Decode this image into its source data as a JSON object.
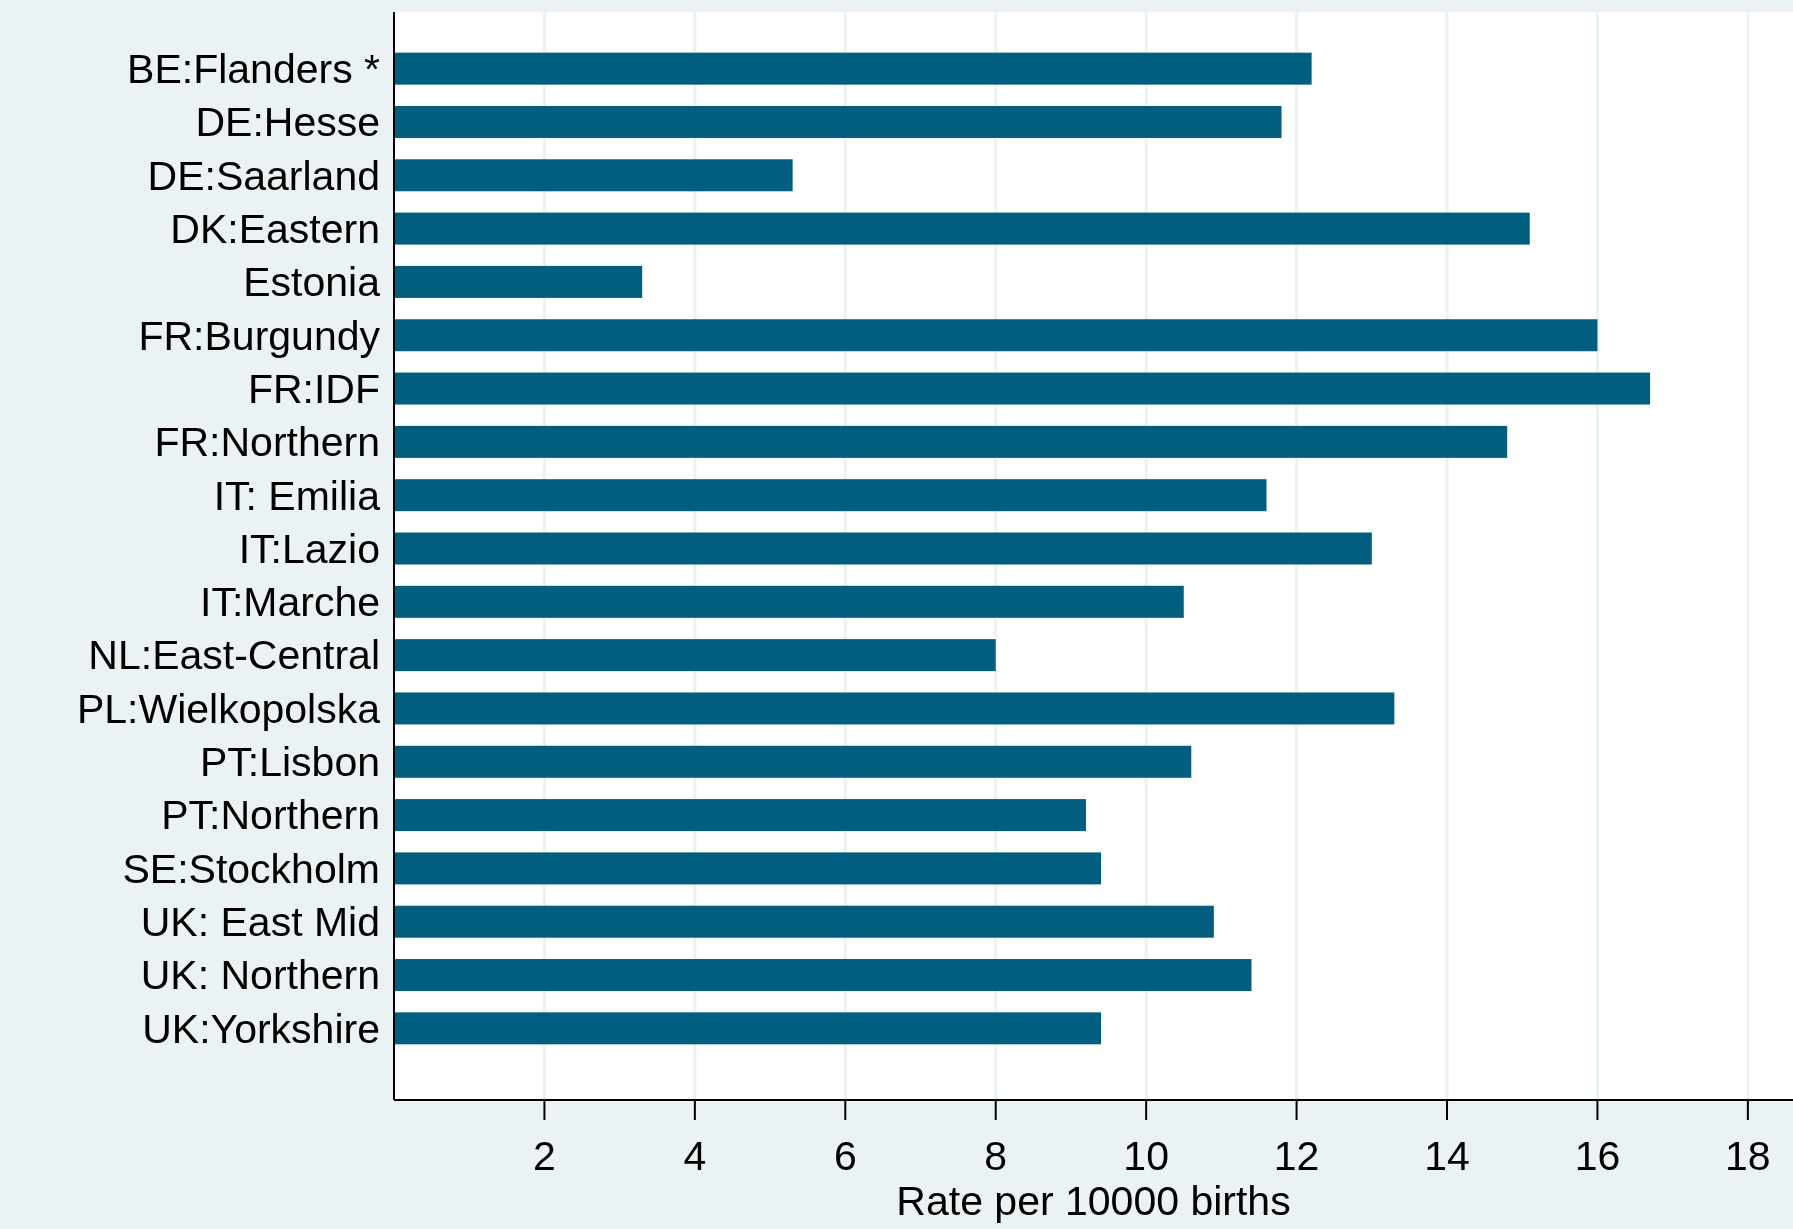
{
  "chart_data": {
    "type": "bar",
    "orientation": "horizontal",
    "xlabel": "Rate per 10000 births",
    "categories": [
      "BE:Flanders *",
      "DE:Hesse",
      "DE:Saarland",
      "DK:Eastern",
      "Estonia",
      "FR:Burgundy",
      "FR:IDF",
      "FR:Northern",
      "IT: Emilia",
      "IT:Lazio",
      "IT:Marche",
      "NL:East-Central",
      "PL:Wielkopolska",
      "PT:Lisbon",
      "PT:Northern",
      "SE:Stockholm",
      "UK: East Mid",
      "UK: Northern",
      "UK:Yorkshire"
    ],
    "values": [
      12.2,
      11.8,
      5.3,
      15.1,
      3.3,
      16.0,
      16.7,
      14.8,
      11.6,
      13.0,
      10.5,
      8.0,
      13.3,
      10.6,
      9.2,
      9.4,
      10.9,
      11.4,
      9.4
    ],
    "color": "#025e7e",
    "xlim": [
      0,
      18.6
    ],
    "xticks": [
      2,
      4,
      6,
      8,
      10,
      12,
      14,
      16,
      18
    ],
    "grid": "x"
  }
}
